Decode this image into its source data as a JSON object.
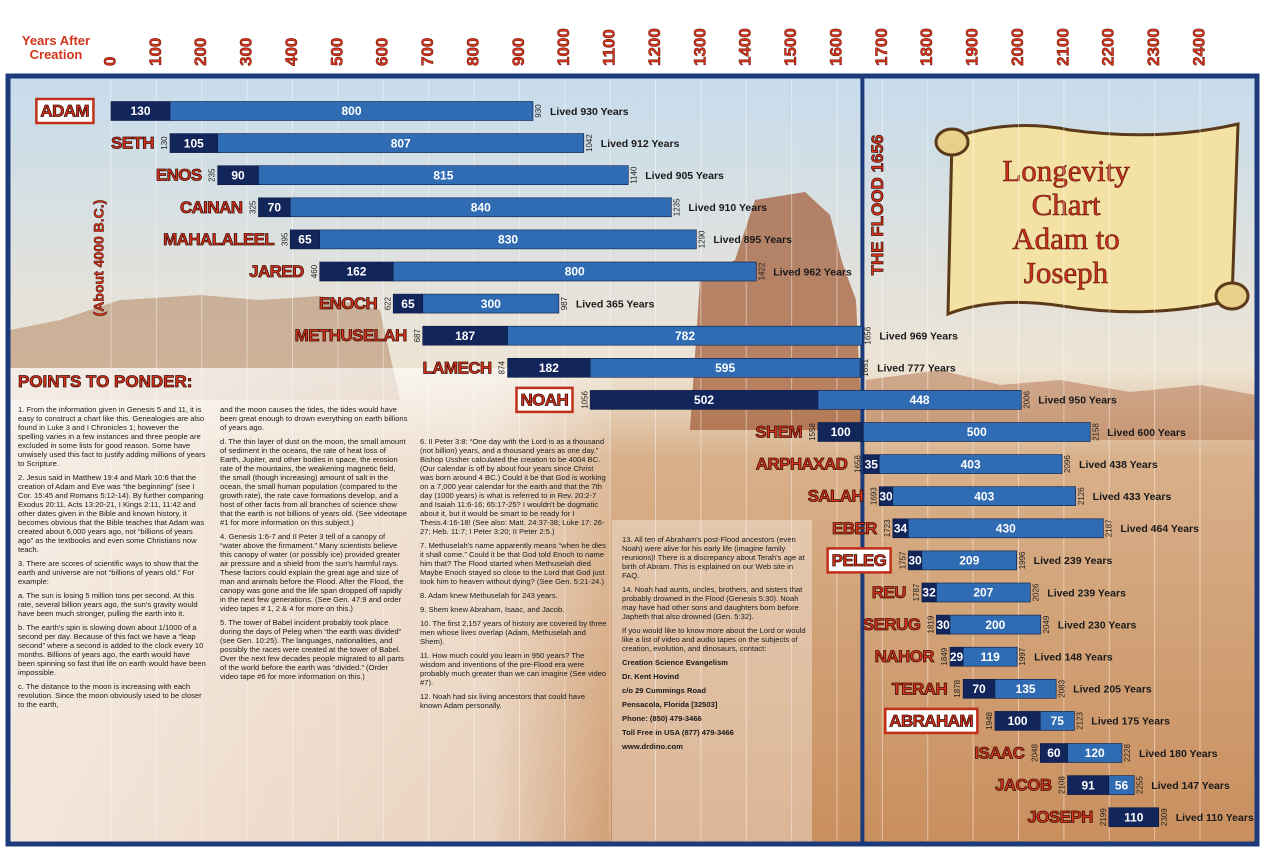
{
  "chart_data": {
    "type": "timeline",
    "title": [
      "Longevity",
      "Chart",
      "Adam to",
      "Joseph"
    ],
    "xlabel": "Years After Creation",
    "xlim": [
      0,
      2400
    ],
    "xticks": [
      0,
      100,
      200,
      300,
      400,
      500,
      600,
      700,
      800,
      900,
      1000,
      1100,
      1200,
      1300,
      1400,
      1500,
      1600,
      1700,
      1800,
      1900,
      2000,
      2100,
      2200,
      2300,
      2400
    ],
    "grid": true,
    "categories": [
      "ADAM",
      "SETH",
      "ENOS",
      "CAINAN",
      "MAHALALEEL",
      "JARED",
      "ENOCH",
      "METHUSELAH",
      "LAMECH",
      "NOAH",
      "SHEM",
      "ARPHAXAD",
      "SALAH",
      "EBER",
      "PELEG",
      "REU",
      "SERUG",
      "NAHOR",
      "TERAH",
      "ABRAHAM",
      "ISAAC",
      "JACOB",
      "JOSEPH"
    ],
    "starts": [
      0,
      130,
      235,
      325,
      395,
      460,
      622,
      687,
      874,
      1056,
      1558,
      1658,
      1693,
      1723,
      1757,
      1787,
      1819,
      1849,
      1878,
      1948,
      2048,
      2108,
      2199
    ],
    "series": [
      {
        "color": "#13265c",
        "values": [
          130,
          105,
          90,
          70,
          65,
          162,
          65,
          187,
          182,
          502,
          100,
          35,
          30,
          34,
          30,
          32,
          30,
          29,
          70,
          100,
          60,
          91,
          110
        ]
      },
      {
        "color": "#2f6cb4",
        "values": [
          800,
          807,
          815,
          840,
          830,
          800,
          300,
          782,
          595,
          448,
          500,
          403,
          403,
          430,
          209,
          207,
          200,
          119,
          135,
          75,
          120,
          56,
          null
        ]
      }
    ],
    "ends": [
      930,
      1042,
      1140,
      1235,
      1290,
      1422,
      987,
      1656,
      1651,
      2006,
      2158,
      2096,
      2126,
      2187,
      1996,
      2026,
      2049,
      1997,
      2083,
      2123,
      2228,
      2255,
      2309
    ],
    "lived_labels": [
      "Lived 930 Years",
      "Lived 912 Years",
      "Lived 905 Years",
      "Lived 910 Years",
      "Lived 895 Years",
      "Lived 962 Years",
      "Lived 365 Years",
      "Lived 969 Years",
      "Lived 777 Years",
      "Lived 950 Years",
      "Lived 600 Years",
      "Lived 438 Years",
      "Lived 433 Years",
      "Lived 464 Years",
      "Lived 239 Years",
      "Lived 239 Years",
      "Lived 230 Years",
      "Lived 148 Years",
      "Lived 205 Years",
      "Lived 175 Years",
      "Lived 180 Years",
      "Lived 147 Years",
      "Lived 110 Years"
    ],
    "flood_line": {
      "value": 1656,
      "label": "THE FLOOD 1656"
    },
    "annotation": "(About 4000 B.C.)"
  },
  "ponder": {
    "title": "POINTS TO PONDER:",
    "columns": [
      [
        "1. From the information given in Genesis 5 and 11, it is easy to construct a chart like this. Genealogies are also found in Luke 3 and I Chronicles 1; however the spelling varies in a few instances and three people are excluded in some lists for good reason. Some have unwisely used this fact to justify adding millions of years to Scripture.",
        "2. Jesus said in Matthew 19:4 and Mark 10:6 that the creation of Adam and Eve was “the beginning” (see I Cor. 15:45 and Romans 5:12-14). By further comparing Exodus 20:11, Acts 13:20-21, I Kings 2:11, 11:42 and other dates given in the Bible and known history, it becomes obvious that the Bible teaches that Adam was created about 6,000 years ago, not “billions of years ago” as the textbooks and even some Christians now teach.",
        "3. There are scores of scientific ways to show that the earth and universe are not “billions of years old.” For example:",
        "a. The sun is losing 5 million tons per second. At this rate, several billion years ago, the sun's gravity would have been much stronger, pulling the earth into it.",
        "b. The earth's spin is slowing down about 1/1000 of a second per day. Because of this fact we have a “leap second” where a second is added to the clock every 10 months. Billions of years ago, the earth would have been spinning so fast that life on earth would have been impossible.",
        "c. The distance to the moon is increasing with each revolution. Since the moon obviously used to be closer to the earth,"
      ],
      [
        "and the moon causes the tides, the tides would have been great enough to drown everything on earth billions of years ago.",
        "d. The thin layer of dust on the moon, the small amount of sediment in the oceans, the rate of heat loss of Earth, Jupiter, and other bodies in space, the erosion rate of the mountains, the weakening magnetic field, the small (though increasing) amount of salt in the ocean, the small human population (compared to the growth rate), the rate cave formations develop, and a host of other facts from all branches of science show that the earth is not billions of years old. (See videotape #1 for more information on this subject.)",
        "4. Genesis 1:6-7 and II Peter 3 tell of a canopy of “water above the firmament.” Many scientists believe this canopy of water (or possibly ice) provided greater air pressure and a shield from the sun's harmful rays. These factors could explain the great age and size of man and animals before the Flood. After the Flood, the canopy was gone and the life span dropped off rapidly in the next few generations. (See Gen. 47:9 and order video tapes # 1, 2 & 4 for more on this.)",
        "5. The tower of Babel incident probably took place during the days of Peleg when “the earth was divided” (see Gen. 10:25). The languages, nationalities, and possibly the races were created at the tower of Babel. Over the next few decades people migrated to all parts of the world before the earth was “divided.” (Order video tape #6 for more information on this.)"
      ],
      [
        "6. II Peter 3:8: “One day with the Lord is as a thousand (not billion) years, and a thousand years as one day.” Bishop Ussher calculated the creation to be 4004 BC. (Our calendar is off by about four years since Christ was born around 4 BC.) Could it be that God is working on a 7,000 year calendar for the earth and that the 7th day (1000 years) is what is referred to in Rev. 20:2-7 and Isaiah 11:6-16; 65:17-25? I wouldn't be dogmatic about it, but it would be smart to be ready for I Thess.4:16-18! (See also: Matt. 24:37-38; Luke 17: 26-27; Heb. 11:7; I Peter 3:20; II Peter 2:5.)",
        "7. Methuselah's name apparently means “when he dies it shall come.” Could it be that God told Enoch to name him that? The Flood started when Methuselah died. Maybe Enoch stayed so close to the Lord that God just took him to heaven without dying? (See Gen. 5:21-24.)",
        "8. Adam knew Methuselah for 243 years.",
        "9. Shem knew Abraham, Isaac, and Jacob.",
        "10. The first 2,157 years of history are covered by three men whose lives overlap (Adam, Methuselah and Shem).",
        "11. How much could you learn in 950 years? The wisdom and inventions of the pre-Flood era were probably much greater than we can imagine (See video #7).",
        "12. Noah had six living ancestors that could have known Adam personally."
      ],
      [
        "13. All ten of Abraham's post-Flood ancestors (even Noah) were alive for his early life (imagine family reunions)! There is a discrepancy about Terah's age at birth of Abram. This is explained on our Web site in FAQ.",
        "14. Noah had aunts, uncles, brothers, and sisters that probably drowned in the Flood (Genesis 5:30). Noah may have had other sons and daughters born before Japheth that also drowned (Gen. 5:32).",
        "If you would like to know more about the Lord or would like a list of video and audio tapes on the subjects of creation, evolution, and dinosaurs, contact:"
      ]
    ],
    "contact": [
      "Creation Science Evangelism",
      "Dr. Kent Hovind",
      "c/o 29 Cummings Road",
      "Pensacola, Florida [32503]",
      "Phone: (850) 479-3466",
      "Toll Free in USA (877) 479-3466",
      "www.drdino.com"
    ]
  }
}
